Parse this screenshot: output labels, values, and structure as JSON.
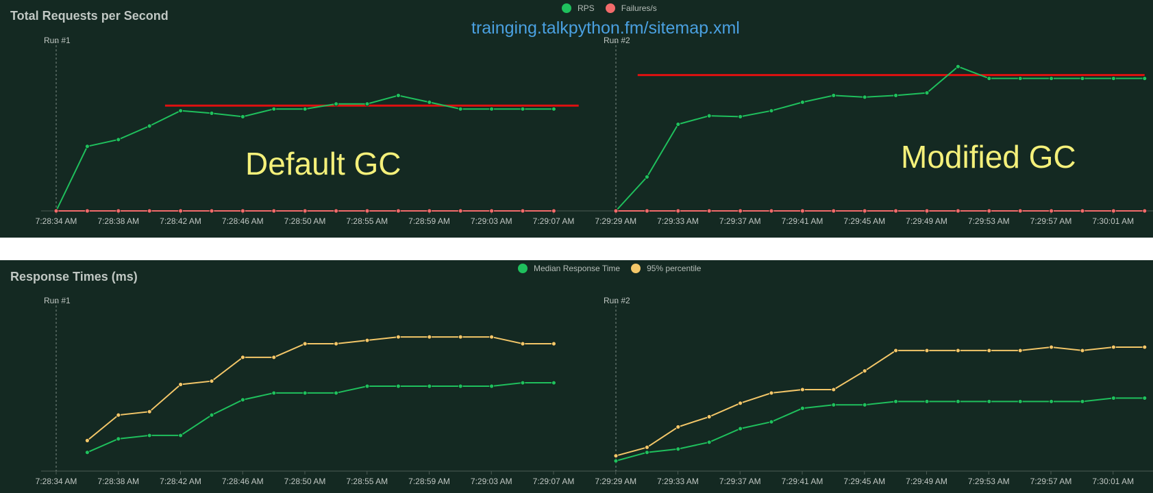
{
  "overlay": {
    "url": "trainging.talkpython.fm/sitemap.xml",
    "left_label": "Default GC",
    "right_label": "Modified GC"
  },
  "chart_data": [
    {
      "type": "line",
      "title": "Total Requests per Second",
      "legend": [
        "RPS",
        "Failures/s"
      ],
      "legend_position": "top-center",
      "runs": [
        "Run #1",
        "Run #2"
      ],
      "x_ticks": [
        "7:28:34 AM",
        "7:28:38 AM",
        "7:28:42 AM",
        "7:28:46 AM",
        "7:28:50 AM",
        "7:28:55 AM",
        "7:28:59 AM",
        "7:29:03 AM",
        "7:29:07 AM",
        "7:29:29 AM",
        "7:29:33 AM",
        "7:29:37 AM",
        "7:29:41 AM",
        "7:29:45 AM",
        "7:29:49 AM",
        "7:29:53 AM",
        "7:29:57 AM",
        "7:30:01 AM"
      ],
      "ylim": [
        0,
        100
      ],
      "grid": false,
      "series": [
        {
          "name": "RPS",
          "color": "#1fc05d",
          "segments": [
            [
              0,
              38,
              42,
              50,
              59,
              57.5,
              55.5,
              60,
              60,
              63,
              63,
              68,
              64,
              60,
              60,
              60,
              60
            ],
            [
              0,
              20,
              51,
              56,
              55.5,
              59,
              64,
              68,
              67,
              68,
              69.5,
              85,
              78,
              78,
              78,
              78,
              78,
              78
            ]
          ]
        },
        {
          "name": "Failures/s",
          "color": "#f26b6b",
          "segments": [
            [
              0,
              0,
              0,
              0,
              0,
              0,
              0,
              0,
              0,
              0,
              0,
              0,
              0,
              0,
              0,
              0,
              0
            ],
            [
              0,
              0,
              0,
              0,
              0,
              0,
              0,
              0,
              0,
              0,
              0,
              0,
              0,
              0,
              0,
              0,
              0,
              0
            ]
          ]
        }
      ],
      "reference_lines": [
        {
          "color": "#e01010",
          "segment": 0,
          "from_index": 3.5,
          "to_index": 16.8,
          "value": 62
        },
        {
          "color": "#e01010",
          "segment": 1,
          "from_index": 0.7,
          "to_index": 17,
          "value": 80
        }
      ]
    },
    {
      "type": "line",
      "title": "Response Times (ms)",
      "legend": [
        "Median Response Time",
        "95% percentile"
      ],
      "legend_position": "top-center",
      "runs": [
        "Run #1",
        "Run #2"
      ],
      "x_ticks": [
        "7:28:34 AM",
        "7:28:38 AM",
        "7:28:42 AM",
        "7:28:46 AM",
        "7:28:50 AM",
        "7:28:55 AM",
        "7:28:59 AM",
        "7:29:03 AM",
        "7:29:07 AM",
        "7:29:29 AM",
        "7:29:33 AM",
        "7:29:37 AM",
        "7:29:41 AM",
        "7:29:45 AM",
        "7:29:49 AM",
        "7:29:53 AM",
        "7:29:57 AM",
        "7:30:01 AM"
      ],
      "ylim": [
        0,
        100
      ],
      "grid": false,
      "series": [
        {
          "name": "Median Response Time",
          "color": "#1fc05d",
          "segments": [
            [
              null,
              11,
              19,
              21,
              21,
              33,
              42,
              46,
              46,
              46,
              50,
              50,
              50,
              50,
              50,
              52,
              52
            ],
            [
              6,
              11,
              13,
              17,
              25,
              29,
              37,
              39,
              39,
              41,
              41,
              41,
              41,
              41,
              41,
              41,
              43,
              43
            ]
          ]
        },
        {
          "name": "95% percentile",
          "color": "#f4c769",
          "segments": [
            [
              null,
              18,
              33,
              35,
              51,
              53,
              67,
              67,
              75,
              75,
              77,
              79,
              79,
              79,
              79,
              75,
              75
            ],
            [
              9,
              14,
              26,
              32,
              40,
              46,
              48,
              48,
              59,
              71,
              71,
              71,
              71,
              71,
              73,
              71,
              73,
              73
            ]
          ]
        }
      ]
    }
  ]
}
